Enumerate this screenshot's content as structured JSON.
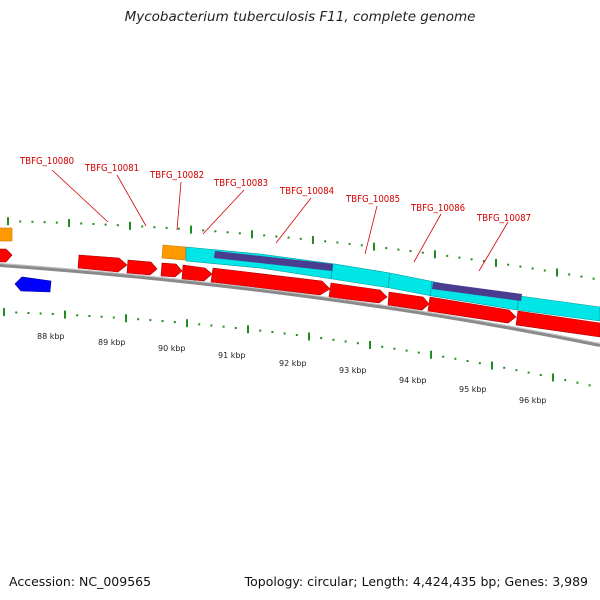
{
  "title": "Mycobacterium tuberculosis F11, complete genome",
  "footer": {
    "accession": "Accession: NC_009565",
    "summary": "Topology: circular; Length: 4,424,435 bp; Genes: 3,989"
  },
  "colors": {
    "cds": "#ff0000",
    "rna": "#0000ff",
    "cyan_feature": "#00e5e5",
    "purple_feature": "#4a3d8f",
    "orange_feature": "#ff9900",
    "backbone": "#888888",
    "ticks": "#228b22",
    "label": "#d40000"
  },
  "gene_labels": [
    "TBFG_10080",
    "TBFG_10081",
    "TBFG_10082",
    "TBFG_10083",
    "TBFG_10084",
    "TBFG_10085",
    "TBFG_10086",
    "TBFG_10087"
  ],
  "kbp_labels": [
    "88 kbp",
    "89 kbp",
    "90 kbp",
    "91 kbp",
    "92 kbp",
    "93 kbp",
    "94 kbp",
    "95 kbp",
    "96 kbp"
  ]
}
